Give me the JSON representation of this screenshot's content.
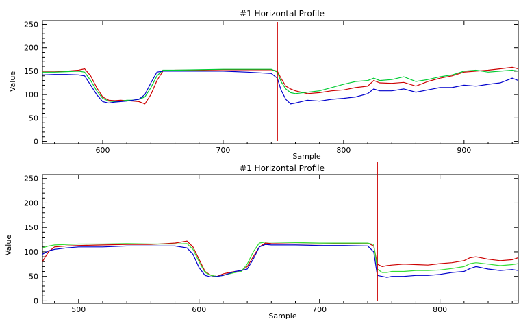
{
  "chart_data": [
    {
      "type": "line",
      "title": "#1 Horizontal Profile",
      "xlabel": "Sample",
      "ylabel": "Value",
      "xlim": [
        550,
        945
      ],
      "ylim": [
        -5,
        258
      ],
      "xticks": [
        600,
        700,
        800,
        900
      ],
      "yticks": [
        0,
        50,
        100,
        150,
        200,
        250
      ],
      "grid": false,
      "marker_x": 745,
      "marker_color": "#cc0000",
      "series": [
        {
          "color": "#cc0000",
          "x": [
            550,
            560,
            570,
            580,
            585,
            590,
            595,
            600,
            605,
            610,
            615,
            620,
            625,
            630,
            635,
            640,
            645,
            650,
            660,
            680,
            700,
            720,
            740,
            745,
            748,
            752,
            756,
            760,
            770,
            780,
            790,
            800,
            810,
            820,
            825,
            830,
            840,
            850,
            860,
            870,
            880,
            890,
            900,
            910,
            920,
            930,
            940,
            945
          ],
          "y": [
            150,
            150,
            150,
            152,
            155,
            140,
            115,
            95,
            88,
            87,
            88,
            87,
            86,
            85,
            80,
            100,
            130,
            150,
            152,
            152,
            153,
            153,
            153,
            150,
            135,
            118,
            112,
            108,
            102,
            104,
            108,
            110,
            115,
            118,
            130,
            125,
            124,
            126,
            118,
            128,
            135,
            140,
            148,
            150,
            152,
            155,
            158,
            155
          ]
        },
        {
          "color": "#00cc33",
          "x": [
            550,
            560,
            570,
            580,
            585,
            590,
            595,
            600,
            605,
            610,
            615,
            620,
            625,
            630,
            635,
            640,
            645,
            650,
            660,
            680,
            700,
            720,
            740,
            745,
            748,
            752,
            756,
            760,
            770,
            780,
            790,
            800,
            810,
            820,
            825,
            830,
            840,
            850,
            860,
            870,
            880,
            890,
            900,
            910,
            920,
            930,
            940,
            945
          ],
          "y": [
            148,
            148,
            149,
            150,
            148,
            130,
            108,
            92,
            86,
            85,
            86,
            88,
            88,
            90,
            95,
            115,
            140,
            152,
            152,
            153,
            154,
            154,
            154,
            148,
            128,
            112,
            104,
            102,
            105,
            108,
            115,
            122,
            128,
            130,
            135,
            130,
            132,
            138,
            128,
            132,
            138,
            142,
            150,
            152,
            148,
            150,
            152,
            150
          ]
        },
        {
          "color": "#0000cc",
          "x": [
            550,
            560,
            570,
            580,
            585,
            590,
            595,
            600,
            605,
            610,
            615,
            620,
            625,
            630,
            635,
            640,
            645,
            650,
            660,
            680,
            700,
            720,
            740,
            745,
            748,
            752,
            756,
            760,
            770,
            780,
            790,
            800,
            810,
            820,
            825,
            830,
            840,
            850,
            860,
            870,
            880,
            890,
            900,
            910,
            920,
            930,
            940,
            945
          ],
          "y": [
            142,
            143,
            143,
            142,
            140,
            120,
            100,
            85,
            82,
            84,
            85,
            86,
            88,
            90,
            100,
            125,
            148,
            150,
            150,
            150,
            150,
            148,
            145,
            135,
            110,
            90,
            80,
            82,
            88,
            86,
            90,
            92,
            95,
            102,
            112,
            108,
            108,
            112,
            105,
            110,
            115,
            115,
            120,
            118,
            122,
            125,
            135,
            130
          ]
        }
      ]
    },
    {
      "type": "line",
      "title": "#1 Horizontal Profile",
      "xlabel": "Sample",
      "ylabel": "Value",
      "xlim": [
        470,
        865
      ],
      "ylim": [
        -5,
        258
      ],
      "xticks": [
        500,
        600,
        700,
        800
      ],
      "yticks": [
        0,
        50,
        100,
        150,
        200,
        250
      ],
      "grid": false,
      "marker_x": 748,
      "marker_color": "#cc0000",
      "series": [
        {
          "color": "#cc0000",
          "x": [
            470,
            475,
            480,
            490,
            500,
            520,
            540,
            560,
            580,
            590,
            595,
            600,
            605,
            610,
            615,
            620,
            625,
            630,
            635,
            640,
            645,
            650,
            655,
            660,
            680,
            700,
            720,
            740,
            745,
            748,
            752,
            756,
            760,
            770,
            780,
            790,
            800,
            810,
            820,
            825,
            830,
            840,
            850,
            860,
            865
          ],
          "y": [
            80,
            100,
            110,
            112,
            113,
            114,
            115,
            115,
            118,
            122,
            110,
            85,
            60,
            52,
            50,
            55,
            58,
            60,
            62,
            70,
            90,
            110,
            118,
            117,
            116,
            116,
            117,
            118,
            112,
            75,
            70,
            72,
            73,
            75,
            74,
            73,
            76,
            78,
            82,
            88,
            90,
            85,
            82,
            84,
            88
          ]
        },
        {
          "color": "#33dd33",
          "x": [
            470,
            475,
            480,
            490,
            500,
            520,
            540,
            560,
            580,
            590,
            595,
            600,
            605,
            610,
            615,
            620,
            625,
            630,
            635,
            640,
            645,
            650,
            655,
            660,
            680,
            700,
            720,
            740,
            745,
            748,
            752,
            756,
            760,
            770,
            780,
            790,
            800,
            810,
            820,
            825,
            830,
            840,
            850,
            860,
            865
          ],
          "y": [
            108,
            112,
            114,
            115,
            116,
            116,
            117,
            116,
            116,
            117,
            105,
            80,
            58,
            52,
            50,
            52,
            55,
            58,
            60,
            75,
            100,
            118,
            120,
            120,
            119,
            118,
            118,
            118,
            115,
            65,
            58,
            58,
            60,
            60,
            62,
            62,
            63,
            66,
            70,
            76,
            78,
            75,
            72,
            74,
            76
          ]
        },
        {
          "color": "#0000cc",
          "x": [
            470,
            475,
            480,
            490,
            500,
            520,
            540,
            560,
            580,
            590,
            595,
            600,
            605,
            610,
            615,
            620,
            625,
            630,
            635,
            640,
            645,
            650,
            655,
            660,
            680,
            700,
            720,
            740,
            745,
            748,
            752,
            756,
            760,
            770,
            780,
            790,
            800,
            810,
            820,
            825,
            830,
            840,
            850,
            860,
            865
          ],
          "y": [
            95,
            102,
            105,
            108,
            110,
            110,
            112,
            112,
            112,
            108,
            95,
            68,
            52,
            49,
            50,
            52,
            56,
            60,
            62,
            65,
            85,
            110,
            115,
            114,
            114,
            113,
            113,
            112,
            100,
            52,
            50,
            48,
            50,
            50,
            52,
            52,
            54,
            58,
            60,
            66,
            70,
            65,
            62,
            64,
            62
          ]
        }
      ]
    }
  ]
}
